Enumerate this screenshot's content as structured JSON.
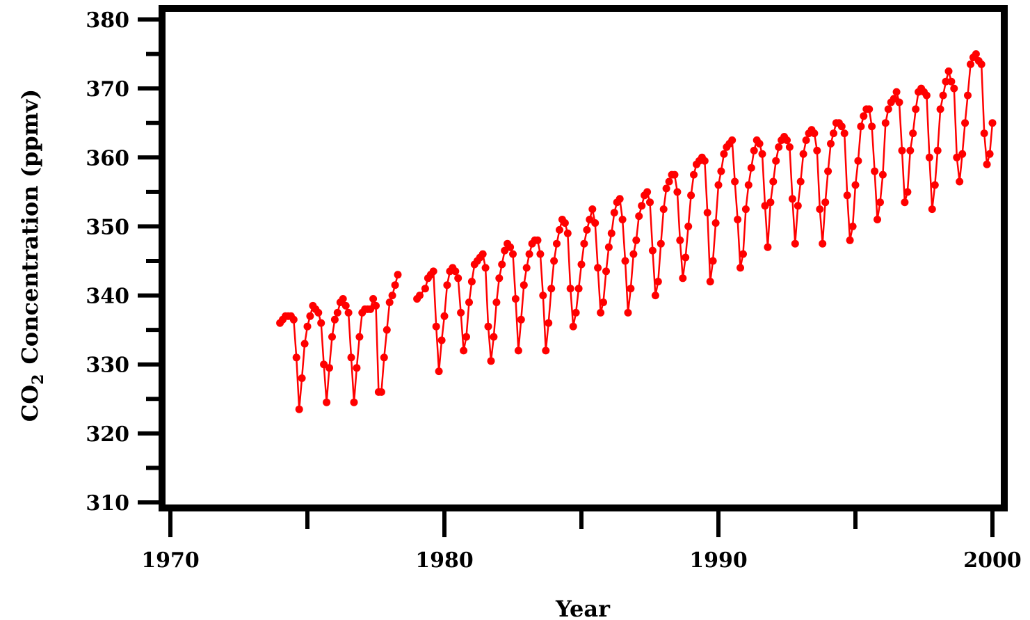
{
  "chart_data": {
    "type": "line",
    "title": "",
    "xlabel": "Year",
    "ylabel_prefix": "CO",
    "ylabel_subscript": "2",
    "ylabel_suffix": "Concentration (ppmv)",
    "xlim": [
      1970,
      2000
    ],
    "ylim": [
      310,
      380
    ],
    "x_ticks": [
      1970,
      1980,
      1990,
      2000
    ],
    "y_ticks": [
      310,
      320,
      330,
      340,
      350,
      360,
      370,
      380
    ],
    "x_minor_step": 5,
    "y_minor_step": 5,
    "grid": false,
    "legend": "none",
    "series": [
      {
        "color": "#ff0000",
        "marker": "circle",
        "segments": [
          [
            [
              1974.0,
              336.0
            ],
            [
              1974.1,
              336.5
            ],
            [
              1974.2,
              337.0
            ],
            [
              1974.3,
              337.0
            ],
            [
              1974.4,
              337.0
            ],
            [
              1974.5,
              336.5
            ],
            [
              1974.6,
              331.0
            ],
            [
              1974.7,
              323.5
            ],
            [
              1974.8,
              328.0
            ],
            [
              1974.9,
              333.0
            ],
            [
              1975.0,
              335.5
            ],
            [
              1975.1,
              337.0
            ],
            [
              1975.2,
              338.5
            ],
            [
              1975.3,
              338.0
            ],
            [
              1975.4,
              337.5
            ],
            [
              1975.5,
              336.0
            ],
            [
              1975.6,
              330.0
            ],
            [
              1975.7,
              324.5
            ],
            [
              1975.8,
              329.5
            ],
            [
              1975.9,
              334.0
            ],
            [
              1976.0,
              336.5
            ],
            [
              1976.1,
              337.5
            ],
            [
              1976.2,
              339.0
            ],
            [
              1976.3,
              339.5
            ],
            [
              1976.4,
              338.5
            ],
            [
              1976.5,
              337.5
            ],
            [
              1976.6,
              331.0
            ],
            [
              1976.7,
              324.5
            ],
            [
              1976.8,
              329.5
            ],
            [
              1976.9,
              334.0
            ],
            [
              1977.0,
              337.5
            ],
            [
              1977.1,
              338.0
            ],
            [
              1977.2,
              338.0
            ],
            [
              1977.3,
              338.0
            ],
            [
              1977.4,
              339.5
            ],
            [
              1977.5,
              338.5
            ],
            [
              1977.6,
              326.0
            ],
            [
              1977.7,
              326.0
            ],
            [
              1977.8,
              331.0
            ],
            [
              1977.9,
              335.0
            ],
            [
              1978.0,
              339.0
            ],
            [
              1978.1,
              340.0
            ],
            [
              1978.2,
              341.5
            ],
            [
              1978.3,
              343.0
            ]
          ],
          [
            [
              1979.0,
              339.5
            ],
            [
              1979.1,
              340.0
            ],
            [
              1979.3,
              341.0
            ],
            [
              1979.4,
              342.5
            ],
            [
              1979.5,
              343.0
            ],
            [
              1979.6,
              343.5
            ],
            [
              1979.7,
              335.5
            ],
            [
              1979.8,
              329.0
            ],
            [
              1979.9,
              333.5
            ],
            [
              1980.0,
              337.0
            ],
            [
              1980.1,
              341.5
            ],
            [
              1980.2,
              343.5
            ],
            [
              1980.3,
              344.0
            ],
            [
              1980.4,
              343.5
            ],
            [
              1980.5,
              342.5
            ],
            [
              1980.6,
              337.5
            ],
            [
              1980.7,
              332.0
            ],
            [
              1980.8,
              334.0
            ],
            [
              1980.9,
              339.0
            ],
            [
              1981.0,
              342.0
            ],
            [
              1981.1,
              344.5
            ],
            [
              1981.2,
              345.0
            ],
            [
              1981.3,
              345.5
            ],
            [
              1981.4,
              346.0
            ],
            [
              1981.5,
              344.0
            ],
            [
              1981.6,
              335.5
            ],
            [
              1981.7,
              330.5
            ],
            [
              1981.8,
              334.0
            ],
            [
              1981.9,
              339.0
            ],
            [
              1982.0,
              342.5
            ],
            [
              1982.1,
              344.5
            ],
            [
              1982.2,
              346.5
            ],
            [
              1982.3,
              347.5
            ],
            [
              1982.4,
              347.0
            ],
            [
              1982.5,
              346.0
            ],
            [
              1982.6,
              339.5
            ],
            [
              1982.7,
              332.0
            ],
            [
              1982.8,
              336.5
            ],
            [
              1982.9,
              341.5
            ],
            [
              1983.0,
              344.0
            ],
            [
              1983.1,
              346.0
            ],
            [
              1983.2,
              347.5
            ],
            [
              1983.3,
              348.0
            ],
            [
              1983.4,
              348.0
            ],
            [
              1983.5,
              346.0
            ],
            [
              1983.6,
              340.0
            ],
            [
              1983.7,
              332.0
            ],
            [
              1983.8,
              336.0
            ],
            [
              1983.9,
              341.0
            ],
            [
              1984.0,
              345.0
            ],
            [
              1984.1,
              347.5
            ],
            [
              1984.2,
              349.5
            ],
            [
              1984.3,
              351.0
            ],
            [
              1984.4,
              350.5
            ],
            [
              1984.5,
              349.0
            ],
            [
              1984.6,
              341.0
            ],
            [
              1984.7,
              335.5
            ],
            [
              1984.8,
              337.5
            ],
            [
              1984.9,
              341.0
            ],
            [
              1985.0,
              344.5
            ],
            [
              1985.1,
              347.5
            ],
            [
              1985.2,
              349.5
            ],
            [
              1985.3,
              351.0
            ],
            [
              1985.4,
              352.5
            ],
            [
              1985.5,
              350.5
            ],
            [
              1985.6,
              344.0
            ],
            [
              1985.7,
              337.5
            ],
            [
              1985.8,
              339.0
            ],
            [
              1985.9,
              343.5
            ],
            [
              1986.0,
              347.0
            ],
            [
              1986.1,
              349.0
            ],
            [
              1986.2,
              352.0
            ],
            [
              1986.3,
              353.5
            ],
            [
              1986.4,
              354.0
            ],
            [
              1986.5,
              351.0
            ],
            [
              1986.6,
              345.0
            ],
            [
              1986.7,
              337.5
            ],
            [
              1986.8,
              341.0
            ],
            [
              1986.9,
              346.0
            ],
            [
              1987.0,
              348.0
            ],
            [
              1987.1,
              351.5
            ],
            [
              1987.2,
              353.0
            ],
            [
              1987.3,
              354.5
            ],
            [
              1987.4,
              355.0
            ],
            [
              1987.5,
              353.5
            ],
            [
              1987.6,
              346.5
            ],
            [
              1987.7,
              340.0
            ],
            [
              1987.8,
              342.0
            ],
            [
              1987.9,
              347.5
            ],
            [
              1988.0,
              352.5
            ],
            [
              1988.1,
              355.5
            ],
            [
              1988.2,
              356.5
            ],
            [
              1988.3,
              357.5
            ],
            [
              1988.4,
              357.5
            ],
            [
              1988.5,
              355.0
            ],
            [
              1988.6,
              348.0
            ],
            [
              1988.7,
              342.5
            ],
            [
              1988.8,
              345.5
            ],
            [
              1988.9,
              350.0
            ],
            [
              1989.0,
              354.5
            ],
            [
              1989.1,
              357.5
            ],
            [
              1989.2,
              359.0
            ],
            [
              1989.3,
              359.5
            ],
            [
              1989.4,
              360.0
            ],
            [
              1989.5,
              359.5
            ],
            [
              1989.6,
              352.0
            ],
            [
              1989.7,
              342.0
            ],
            [
              1989.8,
              345.0
            ],
            [
              1989.9,
              350.5
            ],
            [
              1990.0,
              356.0
            ],
            [
              1990.1,
              358.0
            ],
            [
              1990.2,
              360.5
            ],
            [
              1990.3,
              361.5
            ],
            [
              1990.4,
              362.0
            ],
            [
              1990.5,
              362.5
            ],
            [
              1990.6,
              356.5
            ],
            [
              1990.7,
              351.0
            ],
            [
              1990.8,
              344.0
            ],
            [
              1990.9,
              346.0
            ],
            [
              1991.0,
              352.5
            ],
            [
              1991.1,
              356.0
            ],
            [
              1991.2,
              358.5
            ],
            [
              1991.3,
              361.0
            ],
            [
              1991.4,
              362.5
            ],
            [
              1991.5,
              362.0
            ],
            [
              1991.6,
              360.5
            ],
            [
              1991.7,
              353.0
            ],
            [
              1991.8,
              347.0
            ],
            [
              1991.9,
              353.5
            ],
            [
              1992.0,
              356.5
            ],
            [
              1992.1,
              359.5
            ],
            [
              1992.2,
              361.5
            ],
            [
              1992.3,
              362.5
            ],
            [
              1992.4,
              363.0
            ],
            [
              1992.5,
              362.5
            ],
            [
              1992.6,
              361.5
            ],
            [
              1992.7,
              354.0
            ],
            [
              1992.8,
              347.5
            ],
            [
              1992.9,
              353.0
            ],
            [
              1993.0,
              356.5
            ],
            [
              1993.1,
              360.5
            ],
            [
              1993.2,
              362.5
            ],
            [
              1993.3,
              363.5
            ],
            [
              1993.4,
              364.0
            ],
            [
              1993.5,
              363.5
            ],
            [
              1993.6,
              361.0
            ],
            [
              1993.7,
              352.5
            ],
            [
              1993.8,
              347.5
            ],
            [
              1993.9,
              353.5
            ],
            [
              1994.0,
              358.0
            ],
            [
              1994.1,
              362.0
            ],
            [
              1994.2,
              363.5
            ],
            [
              1994.3,
              365.0
            ],
            [
              1994.4,
              365.0
            ],
            [
              1994.5,
              364.5
            ],
            [
              1994.6,
              363.5
            ],
            [
              1994.7,
              354.5
            ],
            [
              1994.8,
              348.0
            ],
            [
              1994.9,
              350.0
            ],
            [
              1995.0,
              356.0
            ],
            [
              1995.1,
              359.5
            ],
            [
              1995.2,
              364.5
            ],
            [
              1995.3,
              366.0
            ],
            [
              1995.4,
              367.0
            ],
            [
              1995.5,
              367.0
            ],
            [
              1995.6,
              364.5
            ],
            [
              1995.7,
              358.0
            ],
            [
              1995.8,
              351.0
            ],
            [
              1995.9,
              353.5
            ],
            [
              1996.0,
              357.5
            ],
            [
              1996.1,
              365.0
            ],
            [
              1996.2,
              367.0
            ],
            [
              1996.3,
              368.0
            ],
            [
              1996.4,
              368.5
            ],
            [
              1996.5,
              369.5
            ],
            [
              1996.6,
              368.0
            ],
            [
              1996.7,
              361.0
            ],
            [
              1996.8,
              353.5
            ],
            [
              1996.9,
              355.0
            ],
            [
              1997.0,
              361.0
            ],
            [
              1997.1,
              363.5
            ],
            [
              1997.2,
              367.0
            ],
            [
              1997.3,
              369.5
            ],
            [
              1997.4,
              370.0
            ],
            [
              1997.5,
              369.5
            ],
            [
              1997.6,
              369.0
            ],
            [
              1997.7,
              360.0
            ],
            [
              1997.8,
              352.5
            ],
            [
              1997.9,
              356.0
            ],
            [
              1998.0,
              361.0
            ],
            [
              1998.1,
              367.0
            ],
            [
              1998.2,
              369.0
            ],
            [
              1998.3,
              371.0
            ],
            [
              1998.4,
              372.5
            ],
            [
              1998.5,
              371.0
            ],
            [
              1998.6,
              370.0
            ],
            [
              1998.7,
              360.0
            ],
            [
              1998.8,
              356.5
            ],
            [
              1998.9,
              360.5
            ],
            [
              1999.0,
              365.0
            ],
            [
              1999.1,
              369.0
            ],
            [
              1999.2,
              373.5
            ],
            [
              1999.3,
              374.5
            ],
            [
              1999.4,
              375.0
            ],
            [
              1999.5,
              374.0
            ],
            [
              1999.6,
              373.5
            ],
            [
              1999.7,
              363.5
            ],
            [
              1999.8,
              359.0
            ],
            [
              1999.9,
              360.5
            ],
            [
              2000.0,
              365.0
            ]
          ]
        ]
      }
    ]
  }
}
